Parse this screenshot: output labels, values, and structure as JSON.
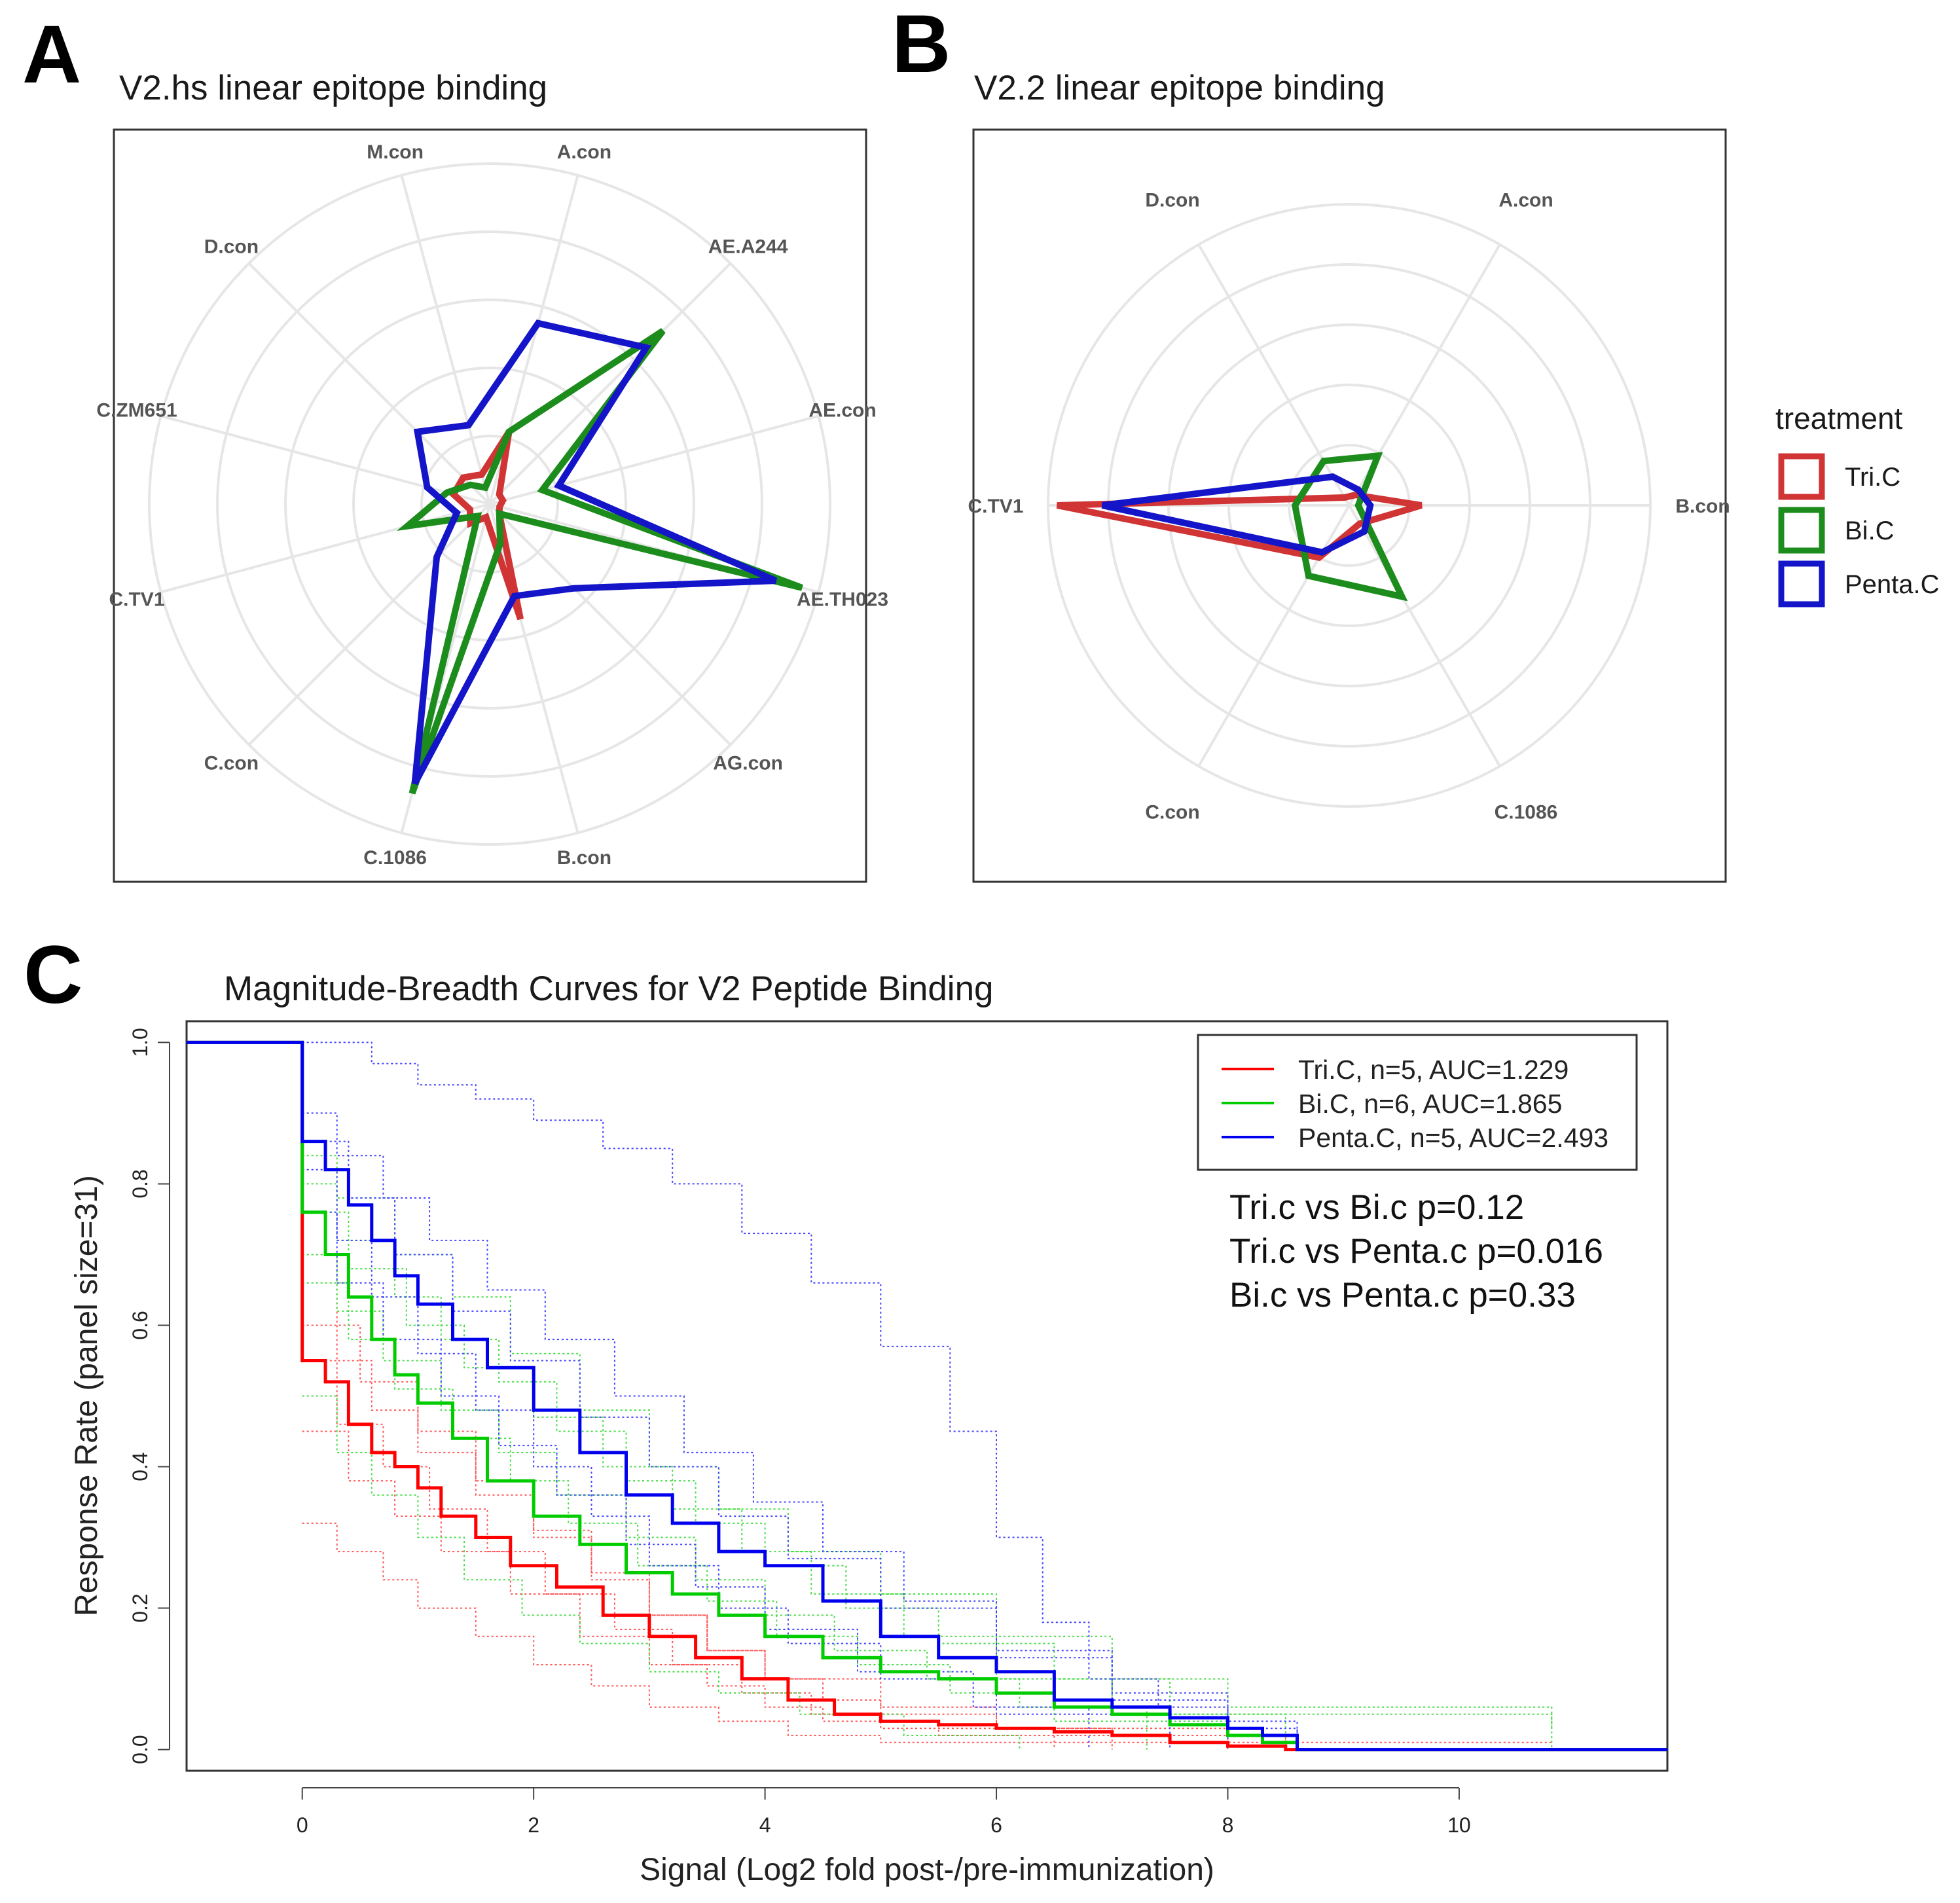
{
  "panels": {
    "a": {
      "letter": "A",
      "title": "V2.hs linear epitope binding"
    },
    "b": {
      "letter": "B",
      "title": "V2.2 linear epitope binding"
    },
    "c": {
      "letter": "C",
      "title": "Magnitude-Breadth Curves for V2 Peptide Binding"
    }
  },
  "colors": {
    "Tri.C": "#d13434",
    "Bi.C": "#1c8c1c",
    "Penta.C": "#1414c8",
    "grid": "#e6e6e6"
  },
  "legend_ab": {
    "title": "treatment",
    "items": [
      {
        "label": "Tri.C",
        "color": "#d13434"
      },
      {
        "label": "Bi.C",
        "color": "#1c8c1c"
      },
      {
        "label": "Penta.C",
        "color": "#1414c8"
      }
    ]
  },
  "legend_c": {
    "items": [
      {
        "label": "Tri.C, n=5, AUC=1.229",
        "color": "#ff0000"
      },
      {
        "label": "Bi.C, n=6, AUC=1.865",
        "color": "#00cc00"
      },
      {
        "label": "Penta.C, n=5, AUC=2.493",
        "color": "#0000ee"
      }
    ]
  },
  "stats": [
    "Tri.c vs Bi.c p=0.12",
    "Tri.c vs Penta.c p=0.016",
    "Bi.c vs Penta.c p=0.33"
  ],
  "chart_data": [
    {
      "type": "radar",
      "panel": "A",
      "title": "V2.hs linear epitope binding",
      "axes": [
        "A.con",
        "AE.A244",
        "AE.con",
        "AE.TH023",
        "AG.con",
        "B.con",
        "C.1086",
        "C.con",
        "C.TV1",
        "C.ZM651",
        "D.con",
        "M.con"
      ],
      "rmax": 1.0,
      "grid_rings": [
        0.2,
        0.4,
        0.6,
        0.8,
        1.0
      ],
      "series": [
        {
          "name": "Tri.C",
          "values": [
            0.22,
            0.04,
            0.04,
            0.03,
            0.04,
            0.35,
            0.04,
            0.08,
            0.06,
            0.11,
            0.11,
            0.09
          ]
        },
        {
          "name": "Bi.C",
          "values": [
            0.22,
            0.72,
            0.16,
            0.95,
            0.04,
            0.12,
            0.88,
            0.05,
            0.25,
            0.13,
            0.08,
            0.05
          ]
        },
        {
          "name": "Penta.C",
          "values": [
            0.55,
            0.65,
            0.21,
            0.87,
            0.35,
            0.28,
            0.85,
            0.22,
            0.1,
            0.19,
            0.3,
            0.24
          ]
        }
      ]
    },
    {
      "type": "radar",
      "panel": "B",
      "title": "V2.2 linear epitope binding",
      "axes": [
        "A.con",
        "B.con",
        "C.1086",
        "C.con",
        "C.TV1",
        "D.con"
      ],
      "rmax": 1.0,
      "grid_rings": [
        0.2,
        0.4,
        0.6,
        0.8,
        1.0
      ],
      "series": [
        {
          "name": "Tri.C",
          "values": [
            0.04,
            0.24,
            0.07,
            0.2,
            0.97,
            0.03
          ]
        },
        {
          "name": "Bi.C",
          "values": [
            0.19,
            0.03,
            0.35,
            0.27,
            0.18,
            0.17
          ]
        },
        {
          "name": "Penta.C",
          "values": [
            0.06,
            0.07,
            0.1,
            0.18,
            0.82,
            0.11
          ]
        }
      ]
    },
    {
      "type": "line",
      "panel": "C",
      "title": "Magnitude-Breadth Curves for V2 Peptide Binding",
      "xlabel": "Signal (Log2 fold post-/pre-immunization)",
      "ylabel": "Response Rate (panel size=31)",
      "xlim": [
        -1.0,
        11.8
      ],
      "ylim": [
        -0.03,
        1.03
      ],
      "xticks": [
        0,
        2,
        4,
        6,
        8,
        10
      ],
      "yticks": [
        0.0,
        0.2,
        0.4,
        0.6,
        0.8,
        1.0
      ],
      "series": [
        {
          "name": "Tri.C",
          "style": "solid",
          "x": [
            -1.0,
            0,
            0,
            0.2,
            0.4,
            0.6,
            0.8,
            1.0,
            1.2,
            1.5,
            1.8,
            2.2,
            2.6,
            3.0,
            3.4,
            3.8,
            4.2,
            4.6,
            5.0,
            5.5,
            6.0,
            6.5,
            7.0,
            7.5,
            8.0,
            8.5,
            9.0,
            11.8
          ],
          "y": [
            1.0,
            1.0,
            0.55,
            0.52,
            0.46,
            0.42,
            0.4,
            0.37,
            0.33,
            0.3,
            0.26,
            0.23,
            0.19,
            0.16,
            0.13,
            0.1,
            0.07,
            0.05,
            0.04,
            0.035,
            0.03,
            0.025,
            0.02,
            0.01,
            0.005,
            0.0,
            0.0,
            0.0
          ]
        },
        {
          "name": "Bi.C",
          "style": "solid",
          "x": [
            -1.0,
            0,
            0,
            0.2,
            0.4,
            0.6,
            0.8,
            1.0,
            1.3,
            1.6,
            2.0,
            2.4,
            2.8,
            3.2,
            3.6,
            4.0,
            4.5,
            5.0,
            5.5,
            6.0,
            6.5,
            7.0,
            7.5,
            8.0,
            8.3,
            8.6,
            11.8
          ],
          "y": [
            1.0,
            1.0,
            0.76,
            0.7,
            0.64,
            0.58,
            0.53,
            0.49,
            0.44,
            0.38,
            0.33,
            0.29,
            0.25,
            0.22,
            0.19,
            0.16,
            0.13,
            0.11,
            0.1,
            0.08,
            0.06,
            0.05,
            0.035,
            0.02,
            0.01,
            0.0,
            0.0
          ]
        },
        {
          "name": "Penta.C",
          "style": "solid",
          "x": [
            -1.0,
            0,
            0,
            0.2,
            0.4,
            0.6,
            0.8,
            1.0,
            1.3,
            1.6,
            2.0,
            2.4,
            2.8,
            3.2,
            3.6,
            4.0,
            4.5,
            5.0,
            5.5,
            6.0,
            6.5,
            7.0,
            7.5,
            8.0,
            8.3,
            8.6,
            11.8
          ],
          "y": [
            1.0,
            1.0,
            0.86,
            0.82,
            0.77,
            0.72,
            0.67,
            0.63,
            0.58,
            0.54,
            0.48,
            0.42,
            0.36,
            0.32,
            0.28,
            0.26,
            0.21,
            0.16,
            0.13,
            0.11,
            0.07,
            0.06,
            0.045,
            0.03,
            0.02,
            0.0,
            0.0
          ]
        },
        {
          "name": "Tri.C",
          "style": "dotted",
          "x": [
            0,
            0.3,
            0.7,
            1.0,
            1.5,
            2.0,
            2.5,
            3.0,
            3.6,
            4.2,
            5.0,
            6.0,
            10.8
          ],
          "y": [
            0.32,
            0.28,
            0.24,
            0.2,
            0.16,
            0.12,
            0.09,
            0.06,
            0.04,
            0.02,
            0.01,
            0.01,
            0.01
          ]
        },
        {
          "name": "Tri.C",
          "style": "dotted",
          "x": [
            0,
            0.3,
            0.6,
            1.0,
            1.5,
            2.0,
            2.5,
            3.0,
            3.5,
            4.0,
            4.5,
            5.0,
            6.0,
            7.0,
            8.5
          ],
          "y": [
            0.7,
            0.55,
            0.48,
            0.42,
            0.36,
            0.3,
            0.24,
            0.19,
            0.14,
            0.1,
            0.07,
            0.05,
            0.03,
            0.02,
            0.0
          ]
        },
        {
          "name": "Tri.C",
          "style": "dotted",
          "x": [
            0,
            0.4,
            0.8,
            1.2,
            1.8,
            2.4,
            3.0,
            3.5,
            4.0,
            4.5,
            5.5,
            7.0
          ],
          "y": [
            0.45,
            0.38,
            0.33,
            0.28,
            0.22,
            0.16,
            0.12,
            0.09,
            0.06,
            0.04,
            0.02,
            0.0
          ]
        },
        {
          "name": "Tri.C",
          "style": "dotted",
          "x": [
            0,
            0.3,
            0.7,
            1.1,
            1.6,
            2.1,
            2.7,
            3.2,
            3.8,
            4.4,
            5.0,
            6.5
          ],
          "y": [
            0.55,
            0.46,
            0.4,
            0.34,
            0.28,
            0.22,
            0.17,
            0.12,
            0.08,
            0.05,
            0.03,
            0.0
          ]
        },
        {
          "name": "Tri.C",
          "style": "dotted",
          "x": [
            0,
            0.5,
            1.0,
            1.5,
            2.0,
            2.5,
            3.0,
            3.5,
            4.0,
            5.0,
            6.0,
            8.0
          ],
          "y": [
            0.6,
            0.52,
            0.45,
            0.38,
            0.31,
            0.25,
            0.19,
            0.14,
            0.1,
            0.06,
            0.03,
            0.0
          ]
        },
        {
          "name": "Bi.C",
          "style": "dotted",
          "x": [
            0,
            0.3,
            0.8,
            1.3,
            1.8,
            2.4,
            3.0,
            3.6,
            4.2,
            5.0,
            6.0,
            7.0,
            8.0,
            10.8
          ],
          "y": [
            0.84,
            0.78,
            0.7,
            0.64,
            0.56,
            0.48,
            0.4,
            0.34,
            0.28,
            0.22,
            0.16,
            0.1,
            0.06,
            0.03
          ]
        },
        {
          "name": "Bi.C",
          "style": "dotted",
          "x": [
            0,
            0.3,
            0.7,
            1.2,
            1.7,
            2.2,
            2.8,
            3.4,
            4.0,
            4.6,
            5.4,
            6.2,
            7.3
          ],
          "y": [
            0.7,
            0.62,
            0.55,
            0.48,
            0.42,
            0.36,
            0.3,
            0.24,
            0.19,
            0.14,
            0.1,
            0.06,
            0.0
          ]
        },
        {
          "name": "Bi.C",
          "style": "dotted",
          "x": [
            0,
            0.4,
            0.9,
            1.4,
            2.0,
            2.6,
            3.2,
            3.8,
            4.4,
            5.2,
            6.0,
            7.0,
            10.8
          ],
          "y": [
            0.76,
            0.68,
            0.6,
            0.54,
            0.47,
            0.4,
            0.34,
            0.28,
            0.22,
            0.16,
            0.1,
            0.05,
            0.0
          ]
        },
        {
          "name": "Bi.C",
          "style": "dotted",
          "x": [
            0,
            0.3,
            0.6,
            1.0,
            1.4,
            1.9,
            2.4,
            3.0,
            3.6,
            4.3,
            5.2,
            6.2
          ],
          "y": [
            0.5,
            0.42,
            0.36,
            0.3,
            0.24,
            0.19,
            0.15,
            0.11,
            0.08,
            0.05,
            0.02,
            0.0
          ]
        },
        {
          "name": "Bi.C",
          "style": "dotted",
          "x": [
            0,
            0.4,
            0.8,
            1.3,
            1.8,
            2.3,
            2.9,
            3.5,
            4.1,
            4.8,
            5.6,
            6.5,
            8.0
          ],
          "y": [
            0.66,
            0.58,
            0.51,
            0.44,
            0.38,
            0.32,
            0.26,
            0.21,
            0.16,
            0.12,
            0.08,
            0.04,
            0.0
          ]
        },
        {
          "name": "Bi.C",
          "style": "dotted",
          "x": [
            0,
            0.3,
            0.8,
            1.2,
            1.7,
            2.2,
            2.8,
            3.4,
            4.0,
            4.7,
            5.5,
            6.5,
            7.5,
            8.5
          ],
          "y": [
            0.8,
            0.72,
            0.64,
            0.58,
            0.52,
            0.45,
            0.38,
            0.32,
            0.26,
            0.2,
            0.15,
            0.1,
            0.05,
            0.0
          ]
        },
        {
          "name": "Penta.C",
          "style": "dotted",
          "x": [
            0,
            0.6,
            1.0,
            1.5,
            2.0,
            2.6,
            3.2,
            3.8,
            4.4,
            5.0,
            5.6,
            6.0,
            6.4,
            6.8,
            7.4,
            8.0,
            8.6,
            10.8
          ],
          "y": [
            1.0,
            0.97,
            0.94,
            0.92,
            0.89,
            0.85,
            0.8,
            0.73,
            0.66,
            0.57,
            0.45,
            0.3,
            0.18,
            0.1,
            0.06,
            0.03,
            0.0,
            0.0
          ]
        },
        {
          "name": "Penta.C",
          "style": "dotted",
          "x": [
            0,
            0.3,
            0.7,
            1.1,
            1.6,
            2.1,
            2.7,
            3.3,
            3.9,
            4.5,
            5.2,
            6.0,
            7.0,
            8.0,
            8.6
          ],
          "y": [
            0.9,
            0.84,
            0.78,
            0.72,
            0.65,
            0.58,
            0.5,
            0.42,
            0.35,
            0.28,
            0.21,
            0.14,
            0.08,
            0.04,
            0.0
          ]
        },
        {
          "name": "Penta.C",
          "style": "dotted",
          "x": [
            0,
            0.3,
            0.6,
            1.0,
            1.5,
            2.0,
            2.5,
            3.0,
            3.6,
            4.2,
            5.0,
            6.0,
            7.5
          ],
          "y": [
            0.82,
            0.72,
            0.64,
            0.56,
            0.48,
            0.4,
            0.33,
            0.26,
            0.2,
            0.15,
            0.1,
            0.05,
            0.0
          ]
        },
        {
          "name": "Penta.C",
          "style": "dotted",
          "x": [
            0,
            0.4,
            0.8,
            1.3,
            1.8,
            2.4,
            3.0,
            3.6,
            4.2,
            5.0,
            6.0,
            7.0,
            8.0
          ],
          "y": [
            0.86,
            0.78,
            0.7,
            0.62,
            0.55,
            0.47,
            0.4,
            0.33,
            0.27,
            0.2,
            0.13,
            0.07,
            0.0
          ]
        },
        {
          "name": "Penta.C",
          "style": "dotted",
          "x": [
            0,
            0.3,
            0.7,
            1.2,
            1.7,
            2.2,
            2.8,
            3.4,
            4.0,
            4.8,
            5.8,
            6.8
          ],
          "y": [
            0.76,
            0.66,
            0.58,
            0.5,
            0.43,
            0.36,
            0.29,
            0.23,
            0.17,
            0.11,
            0.06,
            0.0
          ]
        }
      ]
    }
  ]
}
